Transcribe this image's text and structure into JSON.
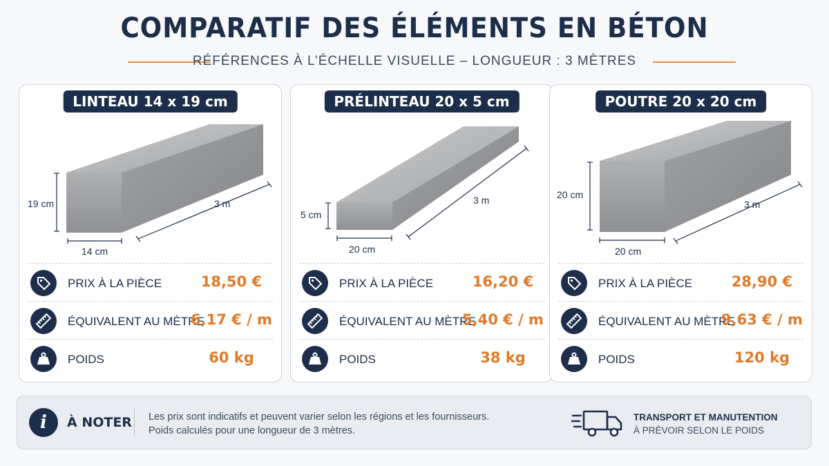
{
  "header": {
    "title": "COMPARATIF DES ÉLÉMENTS EN BÉTON",
    "subtitle": "RÉFÉRENCES À L’ÉCHELLE VISUELLE – LONGUEUR : 3 MÈTRES"
  },
  "labels": {
    "price": "PRIX À LA PIÈCE",
    "per_meter": "ÉQUIVALENT AU MÈTRE",
    "weight": "POIDS"
  },
  "cards": [
    {
      "title": "LINTEAU 14 x 19 cm",
      "height_label": "19 cm",
      "width_label": "14 cm",
      "length_label": "3 m",
      "price": "18,50 €",
      "per_meter": "6,17 € / m",
      "weight": "60 kg"
    },
    {
      "title": "PRÉLINTEAU 20 x 5 cm",
      "height_label": "5 cm",
      "width_label": "20 cm",
      "length_label": "3 m",
      "price": "16,20 €",
      "per_meter": "5,40 € / m",
      "weight": "38 kg"
    },
    {
      "title": "POUTRE 20 x 20 cm",
      "height_label": "20 cm",
      "width_label": "20 cm",
      "length_label": "3 m",
      "price": "28,90 €",
      "per_meter": "9,63 € / m",
      "weight": "120 kg"
    }
  ],
  "note": {
    "title": "À NOTER",
    "line1": "Les prix sont indicatifs et peuvent varier selon les régions et les fournisseurs.",
    "line2": "Poids calculés pour une longueur de 3 mètres.",
    "transport_title": "TRANSPORT ET MANUTENTION",
    "transport_sub": "À PRÉVOIR SELON LE POIDS"
  },
  "icons": [
    "price-tag-icon",
    "ruler-icon",
    "weight-icon",
    "info-icon",
    "truck-icon"
  ],
  "colors": {
    "navy": "#1c2e4a",
    "accent": "#e07a2a",
    "concrete": "#a9abad"
  }
}
